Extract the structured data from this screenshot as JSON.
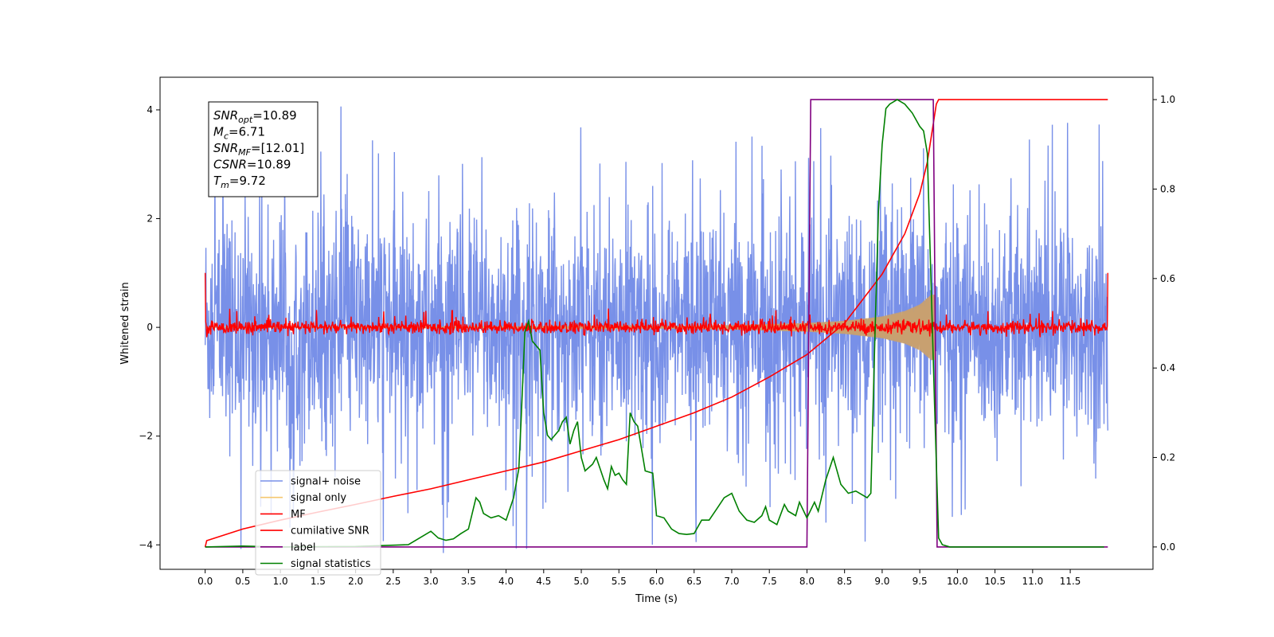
{
  "chart_data": {
    "type": "line",
    "xlabel": "Time (s)",
    "ylabel": "Whitened strain",
    "xlim": [
      -0.6,
      12.6
    ],
    "ylim": [
      -4.45,
      4.6
    ],
    "y2lim": [
      -0.05,
      1.05
    ],
    "xticks": [
      "0.0",
      "0.5",
      "1.0",
      "1.5",
      "2.0",
      "2.5",
      "3.0",
      "3.5",
      "4.0",
      "4.5",
      "5.0",
      "5.5",
      "6.0",
      "6.5",
      "7.0",
      "7.5",
      "8.0",
      "8.5",
      "9.0",
      "9.5",
      "10.0",
      "10.5",
      "11.0",
      "11.5"
    ],
    "yticks": [
      -4,
      -2,
      0,
      2,
      4
    ],
    "y2ticks": [
      "0.0",
      "0.2",
      "0.4",
      "0.6",
      "0.8",
      "1.0"
    ],
    "annotation": [
      {
        "base": "SNR",
        "sub": "opt",
        "rest": "=10.89"
      },
      {
        "base": "M",
        "sub": "c",
        "rest": "=6.71"
      },
      {
        "base": "SNR",
        "sub": "MF",
        "rest": "=[12.01]"
      },
      {
        "base": "CSNR",
        "sub": "",
        "rest": "=10.89"
      },
      {
        "base": "T",
        "sub": "m",
        "rest": "=9.72"
      }
    ],
    "legend": {
      "placement": "lower-left",
      "entries": [
        {
          "label": "signal+ noise",
          "color": "#7890e8"
        },
        {
          "label": "signal only",
          "color": "#f5c870"
        },
        {
          "label": "MF",
          "color": "#ff0000"
        },
        {
          "label": "cumilative SNR",
          "color": "#ff0000"
        },
        {
          "label": "label",
          "color": "#800080"
        },
        {
          "label": "signal statistics",
          "color": "#008000"
        }
      ]
    },
    "series": [
      {
        "name": "signal+ noise",
        "axis": "left",
        "color": "#7890e8",
        "description": "white noise spanning roughly -2.5 to 2.5 with spikes near ±4",
        "x_range": [
          0.0,
          12.0
        ],
        "amplitude_typical": 2.4,
        "amplitude_peak": 4.15
      },
      {
        "name": "signal only",
        "axis": "left",
        "color": "#c8a070",
        "description": "chirp with growing amplitude ending at merger",
        "envelope": {
          "x": [
            0,
            4,
            6,
            7,
            8,
            8.5,
            9,
            9.3,
            9.5,
            9.65,
            9.7
          ],
          "y": [
            0,
            0.01,
            0.02,
            0.04,
            0.08,
            0.12,
            0.2,
            0.3,
            0.42,
            0.6,
            0.6
          ]
        }
      },
      {
        "name": "MF",
        "axis": "left",
        "color": "#ff0000",
        "description": "matched-filter output, small noise around 0 with spikes to 1.0 at both ends",
        "x_range": [
          0.0,
          12.0
        ],
        "amplitude_typical": 0.1,
        "end_values": [
          1.0,
          1.0
        ]
      },
      {
        "name": "cumilative SNR",
        "axis": "right",
        "color": "#ff0000",
        "x": [
          0.0,
          0.02,
          0.5,
          1.0,
          1.5,
          2.0,
          2.5,
          3.0,
          3.5,
          4.0,
          4.5,
          5.0,
          5.5,
          6.0,
          6.5,
          7.0,
          7.5,
          8.0,
          8.5,
          9.0,
          9.3,
          9.5,
          9.6,
          9.72,
          9.75,
          12.0
        ],
        "values": [
          0.0,
          0.014,
          0.04,
          0.06,
          0.078,
          0.095,
          0.113,
          0.13,
          0.15,
          0.17,
          0.19,
          0.215,
          0.24,
          0.27,
          0.3,
          0.335,
          0.38,
          0.43,
          0.5,
          0.61,
          0.7,
          0.79,
          0.86,
          0.99,
          1.0,
          1.0
        ]
      },
      {
        "name": "label",
        "axis": "right",
        "color": "#800080",
        "x": [
          0.0,
          8.0,
          8.05,
          9.68,
          9.73,
          12.0
        ],
        "values": [
          0.0,
          0.0,
          1.0,
          1.0,
          0.0,
          0.0
        ]
      },
      {
        "name": "signal statistics",
        "axis": "right",
        "color": "#008000",
        "x": [
          0.0,
          0.5,
          1.0,
          2.0,
          2.7,
          2.85,
          3.0,
          3.1,
          3.2,
          3.3,
          3.4,
          3.5,
          3.6,
          3.65,
          3.7,
          3.8,
          3.9,
          4.0,
          4.1,
          4.17,
          4.2,
          4.25,
          4.3,
          4.35,
          4.45,
          4.5,
          4.55,
          4.6,
          4.7,
          4.75,
          4.8,
          4.85,
          4.9,
          4.95,
          5.0,
          5.05,
          5.15,
          5.2,
          5.3,
          5.35,
          5.4,
          5.45,
          5.5,
          5.55,
          5.6,
          5.65,
          5.7,
          5.75,
          5.8,
          5.85,
          5.95,
          6.0,
          6.1,
          6.2,
          6.3,
          6.4,
          6.5,
          6.6,
          6.7,
          6.8,
          6.9,
          7.0,
          7.1,
          7.2,
          7.3,
          7.4,
          7.45,
          7.5,
          7.6,
          7.7,
          7.75,
          7.85,
          7.9,
          8.0,
          8.1,
          8.15,
          8.25,
          8.35,
          8.45,
          8.55,
          8.65,
          8.75,
          8.8,
          8.85,
          8.9,
          8.95,
          9.0,
          9.05,
          9.1,
          9.2,
          9.3,
          9.4,
          9.5,
          9.55,
          9.6,
          9.7,
          9.75,
          9.8,
          9.9,
          11.0,
          11.95
        ],
        "values": [
          0.0,
          0.002,
          0.0,
          0.001,
          0.005,
          0.02,
          0.035,
          0.02,
          0.015,
          0.018,
          0.03,
          0.04,
          0.11,
          0.1,
          0.075,
          0.065,
          0.07,
          0.06,
          0.11,
          0.175,
          0.285,
          0.48,
          0.505,
          0.46,
          0.44,
          0.3,
          0.25,
          0.24,
          0.26,
          0.28,
          0.29,
          0.23,
          0.26,
          0.28,
          0.2,
          0.17,
          0.185,
          0.2,
          0.15,
          0.13,
          0.18,
          0.16,
          0.165,
          0.15,
          0.14,
          0.3,
          0.28,
          0.27,
          0.22,
          0.17,
          0.165,
          0.07,
          0.065,
          0.04,
          0.03,
          0.028,
          0.03,
          0.06,
          0.06,
          0.085,
          0.11,
          0.12,
          0.08,
          0.06,
          0.055,
          0.07,
          0.09,
          0.06,
          0.05,
          0.095,
          0.08,
          0.07,
          0.1,
          0.065,
          0.1,
          0.08,
          0.15,
          0.2,
          0.14,
          0.12,
          0.125,
          0.115,
          0.11,
          0.12,
          0.45,
          0.75,
          0.9,
          0.98,
          0.99,
          1.0,
          0.99,
          0.97,
          0.94,
          0.93,
          0.88,
          0.3,
          0.02,
          0.005,
          0.0,
          0.0,
          0.0
        ]
      }
    ]
  }
}
